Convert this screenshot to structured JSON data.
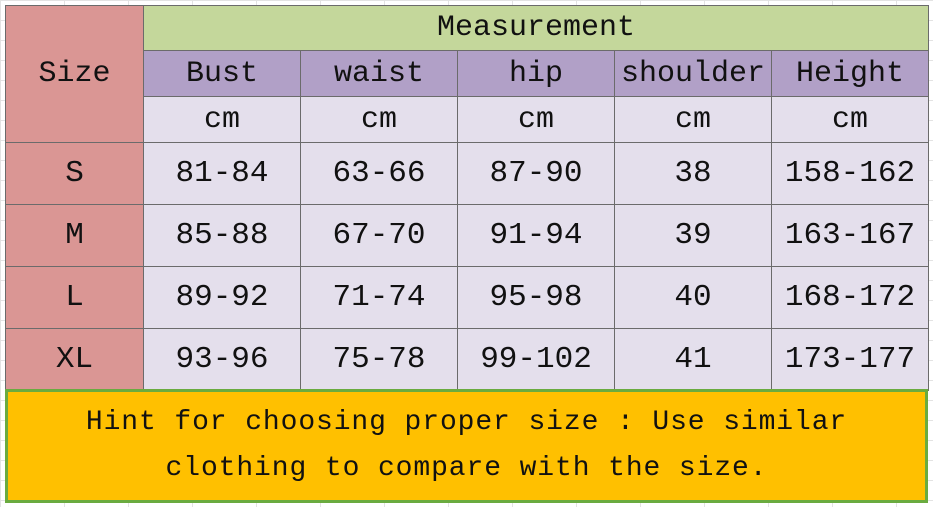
{
  "table": {
    "corner": "Size",
    "group_header": "Measurement",
    "columns": [
      "Bust",
      "waist",
      "hip",
      "shoulder",
      "Height"
    ],
    "units": [
      "cm",
      "cm",
      "cm",
      "cm",
      "cm"
    ],
    "rows": [
      {
        "size": "S",
        "values": [
          "81-84",
          "63-66",
          "87-90",
          "38",
          "158-162"
        ]
      },
      {
        "size": "M",
        "values": [
          "85-88",
          "67-70",
          "91-94",
          "39",
          "163-167"
        ]
      },
      {
        "size": "L",
        "values": [
          "89-92",
          "71-74",
          "95-98",
          "40",
          "168-172"
        ]
      },
      {
        "size": "XL",
        "values": [
          "93-96",
          "75-78",
          "99-102",
          "41",
          "173-177"
        ]
      }
    ]
  },
  "hint": {
    "lines": [
      "Hint for choosing proper size : Use similar",
      "clothing to compare with the size."
    ]
  }
}
